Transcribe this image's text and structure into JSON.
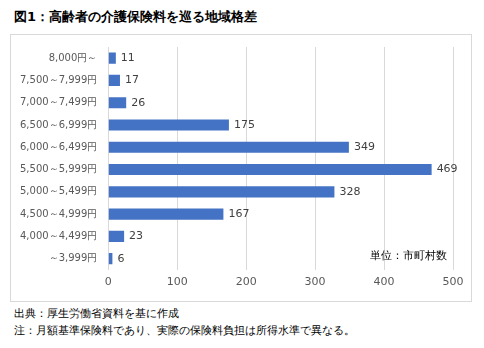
{
  "chart_data": {
    "type": "bar",
    "orientation": "horizontal",
    "title": "図1：高齢者の介護保険料を巡る地域格差",
    "categories": [
      "8,000円～",
      "7,500～7,999円",
      "7,000～7,499円",
      "6,500～6,999円",
      "6,000～6,499円",
      "5,500～5,999円",
      "5,000～5,499円",
      "4,500～4,999円",
      "4,000～4,499円",
      "～3,999円"
    ],
    "values": [
      11,
      17,
      26,
      175,
      349,
      469,
      328,
      167,
      23,
      6
    ],
    "color": "#4472c4",
    "xlim": [
      0,
      500
    ],
    "xticks": [
      0,
      100,
      200,
      300,
      400,
      500
    ],
    "grid": true,
    "data_labels": true,
    "annotations": [
      "単位：市町村数"
    ],
    "source": "出典：厚生労働省資料を基に作成",
    "note": "注：月額基準保険料であり、実際の保険料負担は所得水準で異なる。"
  }
}
